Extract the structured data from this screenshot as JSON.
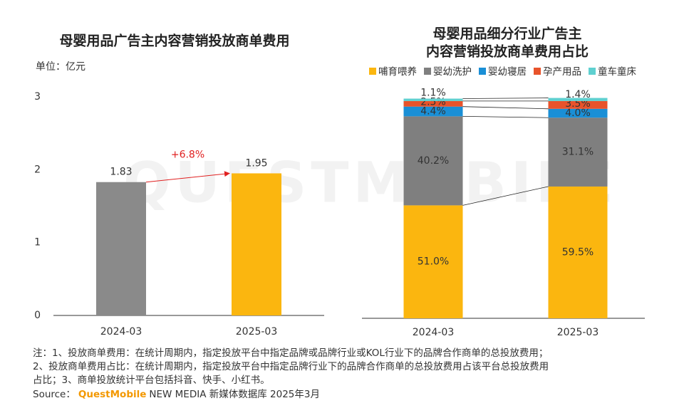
{
  "watermark": "QUESTMOBILE",
  "chart_data": [
    {
      "type": "bar",
      "title": "母婴用品广告主内容营销投放商单费用",
      "unit": "单位：亿元",
      "categories": [
        "2024-03",
        "2025-03"
      ],
      "values": [
        1.83,
        1.95
      ],
      "colors": [
        "#8a8a8a",
        "#fbb60f"
      ],
      "ylim": [
        0,
        3
      ],
      "yticks": [
        0,
        1,
        2,
        3
      ],
      "annotation": "+6.8%",
      "annotation_color": "#e02020"
    },
    {
      "type": "stacked_bar",
      "title": [
        "母婴用品细分行业广告主",
        "内容营销投放商单费用占比"
      ],
      "categories": [
        "2024-03",
        "2025-03"
      ],
      "ylim": [
        0,
        100
      ],
      "legend": "top",
      "series": [
        {
          "name": "哺育喂养",
          "color": "#fbb60f",
          "values": [
            51.0,
            59.5
          ],
          "value_labels": [
            "51.0%",
            "59.5%"
          ]
        },
        {
          "name": "婴幼洗护",
          "color": "#7f7f7f",
          "values": [
            40.2,
            31.1
          ],
          "value_labels": [
            "40.2%",
            "31.1%"
          ]
        },
        {
          "name": "婴幼寝居",
          "color": "#1a8fd6",
          "values": [
            4.4,
            4.0
          ],
          "value_labels": [
            "4.4%",
            "4.0%"
          ]
        },
        {
          "name": "孕产用品",
          "color": "#e8532b",
          "values": [
            2.5,
            3.5
          ],
          "value_labels": [
            "2.5%",
            "3.5%"
          ]
        },
        {
          "name": "童车童床",
          "color": "#5fd0d0",
          "values": [
            1.1,
            1.4
          ],
          "value_labels": [
            "1.1%",
            "1.4%"
          ]
        }
      ]
    }
  ],
  "notes": [
    "注：1、投放商单费用：在统计周期内，指定投放平台中指定品牌或品牌行业或KOL行业下的品牌合作商单的总投放费用；",
    "2、投放商单费用占比：在统计周期内，指定投放平台中指定品牌行业下的品牌合作商单的总投放费用占该平台总投放费用",
    "占比；3、商单投放统计平台包括抖音、快手、小红书。"
  ],
  "source": {
    "label": "Source：",
    "brand": "QuestMobile",
    "text": "NEW MEDIA 新媒体数据库 2025年3月"
  }
}
